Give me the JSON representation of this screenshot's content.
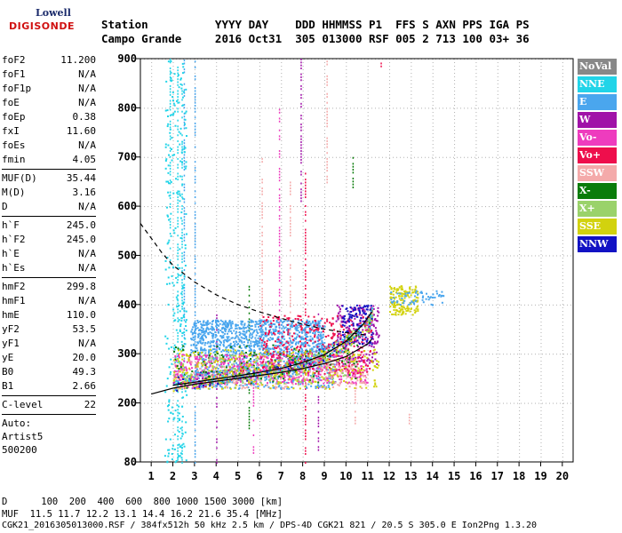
{
  "logo": {
    "line1": "Lowell",
    "line2": "DIGISONDE"
  },
  "header": {
    "line1": "Station          YYYY DAY    DDD HHMMSS P1  FFS S AXN PPS IGA PS",
    "line2": "Campo Grande     2016 Oct31  305 013000 RSF 005 2 713 100 03+ 36"
  },
  "params": [
    [
      {
        "k": "foF2",
        "v": "11.200"
      },
      {
        "k": "foF1",
        "v": "N/A"
      },
      {
        "k": "foF1p",
        "v": "N/A"
      },
      {
        "k": "foE",
        "v": "N/A"
      },
      {
        "k": "foEp",
        "v": "0.38"
      },
      {
        "k": "fxI",
        "v": "11.60"
      },
      {
        "k": "foEs",
        "v": "N/A"
      },
      {
        "k": "fmin",
        "v": "4.05"
      }
    ],
    [
      {
        "k": "MUF(D)",
        "v": "35.44"
      },
      {
        "k": "M(D)",
        "v": "3.16"
      },
      {
        "k": "D",
        "v": "N/A"
      }
    ],
    [
      {
        "k": "h`F",
        "v": "245.0"
      },
      {
        "k": "h`F2",
        "v": "245.0"
      },
      {
        "k": "h`E",
        "v": "N/A"
      },
      {
        "k": "h`Es",
        "v": "N/A"
      }
    ],
    [
      {
        "k": "hmF2",
        "v": "299.8"
      },
      {
        "k": "hmF1",
        "v": "N/A"
      },
      {
        "k": "hmE",
        "v": "110.0"
      },
      {
        "k": "yF2",
        "v": "53.5"
      },
      {
        "k": "yF1",
        "v": "N/A"
      },
      {
        "k": "yE",
        "v": "20.0"
      },
      {
        "k": "B0",
        "v": "49.3"
      },
      {
        "k": "B1",
        "v": "2.66"
      }
    ],
    [
      {
        "k": "C-level",
        "v": "22"
      }
    ]
  ],
  "auto": {
    "line1": "Auto:",
    "line2": "Artist5",
    "line3": "500200"
  },
  "legend": [
    {
      "label": "NoVal",
      "color": "#888888"
    },
    {
      "label": "NNE",
      "color": "#22d4e8"
    },
    {
      "label": "E",
      "color": "#4aa6ee"
    },
    {
      "label": "W",
      "color": "#a012a8"
    },
    {
      "label": "Vo-",
      "color": "#ee3cbe"
    },
    {
      "label": "Vo+",
      "color": "#ee0e4c"
    },
    {
      "label": "SSW",
      "color": "#f4aaaa"
    },
    {
      "label": "X-",
      "color": "#0a7c0a"
    },
    {
      "label": "X+",
      "color": "#9ad26a"
    },
    {
      "label": "SSE",
      "color": "#d2d20e"
    },
    {
      "label": "NNW",
      "color": "#1212c4"
    }
  ],
  "bottom": {
    "line1": "D      100  200  400  600  800 1000 1500 3000 [km]",
    "line2": "MUF  11.5 11.7 12.2 13.1 14.4 16.2 21.6 35.4 [MHz]"
  },
  "footer": "CGK21_2016305013000.RSF / 384fx512h 50 kHz 2.5 km / DPS-4D CGK21 821 / 20.5 S 305.0 E Ion2Png 1.3.20",
  "chart_data": {
    "type": "scatter",
    "xlim": [
      0.5,
      20.5
    ],
    "ylim": [
      80,
      900
    ],
    "xticks": [
      1,
      2,
      3,
      4,
      5,
      6,
      7,
      8,
      9,
      10,
      11,
      12,
      13,
      14,
      15,
      16,
      17,
      18,
      19,
      20
    ],
    "yticks": [
      80,
      200,
      300,
      400,
      500,
      600,
      700,
      800,
      900
    ],
    "grid": true,
    "curves": [
      {
        "style": "solid",
        "color": "#000000",
        "points": [
          [
            1.0,
            218
          ],
          [
            2.0,
            230
          ],
          [
            3,
            238
          ],
          [
            4,
            244
          ],
          [
            5,
            250
          ],
          [
            6,
            256
          ],
          [
            7,
            262
          ],
          [
            8,
            270
          ],
          [
            9,
            280
          ],
          [
            10,
            294
          ],
          [
            11,
            320
          ],
          [
            11.2,
            330
          ]
        ]
      },
      {
        "style": "solid",
        "color": "#000000",
        "points": [
          [
            2.0,
            236
          ],
          [
            3,
            242
          ],
          [
            4,
            249
          ],
          [
            5,
            255
          ],
          [
            6,
            262
          ],
          [
            7,
            270
          ],
          [
            8,
            282
          ],
          [
            9,
            298
          ],
          [
            10,
            325
          ],
          [
            10.8,
            360
          ],
          [
            11.2,
            385
          ]
        ]
      },
      {
        "style": "dashed",
        "color": "#000000",
        "points": [
          [
            0.5,
            565
          ],
          [
            1,
            535
          ],
          [
            1.5,
            505
          ],
          [
            2,
            480
          ],
          [
            3,
            446
          ],
          [
            4,
            420
          ],
          [
            5,
            400
          ],
          [
            6,
            385
          ],
          [
            7,
            372
          ],
          [
            8,
            360
          ],
          [
            9,
            350
          ],
          [
            10,
            343
          ],
          [
            11,
            338
          ]
        ]
      }
    ],
    "trace": {
      "x": [
        2.0,
        3,
        4,
        5,
        6,
        7,
        8,
        9,
        10,
        11,
        11.2
      ],
      "y": [
        240,
        247,
        253,
        259,
        265,
        273,
        285,
        300,
        325,
        360,
        385
      ]
    },
    "clusters": [
      {
        "color": "#22d4e8",
        "x": [
          1.6,
          2.6
        ],
        "y": [
          80,
          900
        ],
        "n": 260
      },
      {
        "color": "#4aa6ee",
        "x": [
          2.8,
          9.0
        ],
        "y": [
          300,
          370
        ],
        "n": 900
      },
      {
        "color": "#4aa6ee",
        "x": [
          3.0,
          9.5
        ],
        "y": [
          230,
          300
        ],
        "n": 500
      },
      {
        "color": "#a012a8",
        "x": [
          9.5,
          11.5
        ],
        "y": [
          280,
          400
        ],
        "n": 200
      },
      {
        "color": "#ee3cbe",
        "x": [
          2.0,
          11.0
        ],
        "y": [
          240,
          300
        ],
        "n": 600
      },
      {
        "color": "#ee0e4c",
        "x": [
          6.0,
          11.2
        ],
        "y": [
          260,
          380
        ],
        "n": 350
      },
      {
        "color": "#f4aaaa",
        "x": [
          2.0,
          11.0
        ],
        "y": [
          230,
          290
        ],
        "n": 250
      },
      {
        "color": "#0a7c0a",
        "x": [
          2.0,
          10.5
        ],
        "y": [
          240,
          320
        ],
        "n": 120
      },
      {
        "color": "#9ad26a",
        "x": [
          2.0,
          10.0
        ],
        "y": [
          240,
          300
        ],
        "n": 120
      },
      {
        "color": "#d2d20e",
        "x": [
          2.0,
          11.5
        ],
        "y": [
          230,
          310
        ],
        "n": 300
      },
      {
        "color": "#d2d20e",
        "x": [
          12.0,
          13.3
        ],
        "y": [
          380,
          440
        ],
        "n": 160
      },
      {
        "color": "#1212c4",
        "x": [
          9.8,
          11.2
        ],
        "y": [
          320,
          400
        ],
        "n": 120
      },
      {
        "color": "#4aa6ee",
        "x": [
          12.0,
          14.5
        ],
        "y": [
          400,
          430
        ],
        "n": 60
      }
    ],
    "streaks": [
      {
        "color": "#22d4e8",
        "x": 1.85,
        "y": [
          480,
          900
        ]
      },
      {
        "color": "#22d4e8",
        "x": 2.2,
        "y": [
          80,
          900
        ]
      },
      {
        "color": "#22d4e8",
        "x": 2.4,
        "y": [
          80,
          850
        ]
      },
      {
        "color": "#4aa6ee",
        "x": 2.5,
        "y": [
          250,
          900
        ]
      },
      {
        "color": "#4aa6ee",
        "x": 3.0,
        "y": [
          80,
          900
        ]
      },
      {
        "color": "#a012a8",
        "x": 4.0,
        "y": [
          80,
          380
        ]
      },
      {
        "color": "#0a7c0a",
        "x": 5.5,
        "y": [
          150,
          440
        ]
      },
      {
        "color": "#ee3cbe",
        "x": 5.7,
        "y": [
          100,
          300
        ]
      },
      {
        "color": "#f4aaaa",
        "x": 6.1,
        "y": [
          350,
          700
        ]
      },
      {
        "color": "#ee3cbe",
        "x": 6.9,
        "y": [
          300,
          800
        ]
      },
      {
        "color": "#f4aaaa",
        "x": 7.4,
        "y": [
          260,
          650
        ]
      },
      {
        "color": "#a012a8",
        "x": 7.9,
        "y": [
          600,
          900
        ]
      },
      {
        "color": "#ee0e4c",
        "x": 8.1,
        "y": [
          80,
          680
        ]
      },
      {
        "color": "#a012a8",
        "x": 8.7,
        "y": [
          100,
          400
        ]
      },
      {
        "color": "#f4aaaa",
        "x": 9.1,
        "y": [
          650,
          900
        ]
      },
      {
        "color": "#0a7c0a",
        "x": 10.3,
        "y": [
          640,
          700
        ]
      },
      {
        "color": "#f4aaaa",
        "x": 10.4,
        "y": [
          160,
          230
        ]
      },
      {
        "color": "#ee0e4c",
        "x": 11.6,
        "y": [
          880,
          900
        ]
      },
      {
        "color": "#f4aaaa",
        "x": 12.9,
        "y": [
          160,
          180
        ]
      },
      {
        "color": "#f4aaaa",
        "x": 9.7,
        "y": [
          290,
          380
        ]
      }
    ]
  }
}
